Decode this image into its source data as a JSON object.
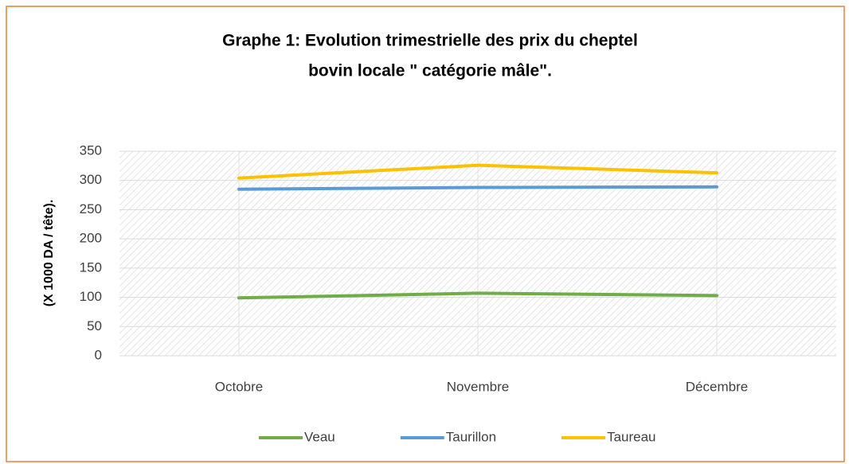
{
  "chart_data": {
    "type": "line",
    "title": [
      "Graphe 1: Evolution trimestrielle des prix du cheptel",
      "bovin locale \" catégorie mâle\"."
    ],
    "y_label": "(X 1000 DA / tête).",
    "categories": [
      "Octobre",
      "Novembre",
      "Décembre"
    ],
    "series": [
      {
        "name": "Veau",
        "color": "#70ad47",
        "values": [
          99,
          107,
          103
        ]
      },
      {
        "name": "Taurillon",
        "color": "#5b9bd5",
        "values": [
          285,
          288,
          289
        ]
      },
      {
        "name": "Taureau",
        "color": "#ffc000",
        "values": [
          304,
          326,
          313
        ]
      }
    ],
    "ylim": [
      0,
      350
    ],
    "yticks": [
      0,
      50,
      100,
      150,
      200,
      250,
      300,
      350
    ],
    "grid": true,
    "legend": "bottom"
  }
}
